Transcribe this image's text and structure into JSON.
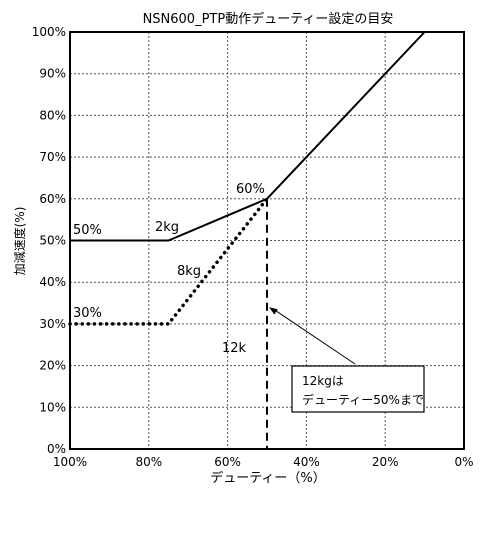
{
  "chart_data": {
    "type": "line",
    "title": "NSN600_PTP動作デューティー設定の目安",
    "xlabel": "デューティー（%）",
    "ylabel": "加減速度(%)",
    "x_reversed": true,
    "xlim": [
      100,
      0
    ],
    "ylim": [
      0,
      100
    ],
    "grid": true,
    "x_ticks": [
      "100%",
      "80%",
      "60%",
      "40%",
      "20%",
      "0%"
    ],
    "y_ticks": [
      "0%",
      "10%",
      "20%",
      "30%",
      "40%",
      "50%",
      "60%",
      "70%",
      "80%",
      "90%",
      "100%"
    ],
    "series": [
      {
        "name": "2kg",
        "style": "solid",
        "points": [
          [
            100,
            50
          ],
          [
            75,
            50
          ],
          [
            50,
            60
          ],
          [
            10,
            100
          ]
        ]
      },
      {
        "name": "8kg",
        "style": "dotted",
        "points": [
          [
            100,
            30
          ],
          [
            75,
            30
          ],
          [
            50,
            60
          ]
        ]
      },
      {
        "name": "12k",
        "style": "dashed",
        "points": [
          [
            50,
            60
          ],
          [
            50,
            0
          ]
        ]
      }
    ],
    "annotations": [
      {
        "text": "60%",
        "x": 50,
        "y": 60
      },
      {
        "text": "50%",
        "x": 100,
        "y": 50
      },
      {
        "text": "30%",
        "x": 100,
        "y": 30
      }
    ],
    "callout": {
      "lines": [
        "12kgは",
        "デューティー50%まで"
      ],
      "arrow_to": [
        50,
        34
      ]
    }
  }
}
